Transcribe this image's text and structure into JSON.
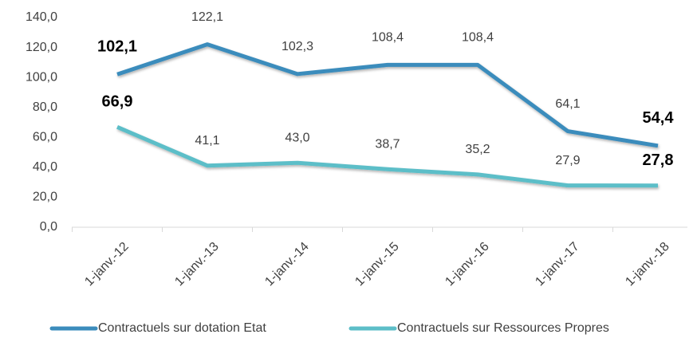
{
  "chart_data": {
    "type": "line",
    "categories": [
      "1-janv.-12",
      "1-janv.-13",
      "1-janv.-14",
      "1-janv.-15",
      "1-janv.-16",
      "1-janv.-17",
      "1-janv.-18"
    ],
    "series": [
      {
        "name": "Contractuels sur dotation Etat",
        "color": "#3b8cbc",
        "values": [
          102.1,
          122.1,
          102.3,
          108.4,
          108.4,
          64.1,
          54.4
        ],
        "value_labels": [
          "102,1",
          "122,1",
          "102,3",
          "108,4",
          "108,4",
          "64,1",
          "54,4"
        ]
      },
      {
        "name": "Contractuels sur Ressources Propres",
        "color": "#5cbec8",
        "values": [
          66.9,
          41.1,
          43.0,
          38.7,
          35.2,
          27.9,
          27.8
        ],
        "value_labels": [
          "66,9",
          "41,1",
          "43,0",
          "38,7",
          "35,2",
          "27,9",
          "27,8"
        ]
      }
    ],
    "ylim": [
      0,
      140
    ],
    "yticks": [
      {
        "value": 0,
        "label": "0,0"
      },
      {
        "value": 20,
        "label": "20,0"
      },
      {
        "value": 40,
        "label": "40,0"
      },
      {
        "value": 60,
        "label": "60,0"
      },
      {
        "value": 80,
        "label": "80,0"
      },
      {
        "value": 100,
        "label": "100,0"
      },
      {
        "value": 120,
        "label": "120,0"
      },
      {
        "value": 140,
        "label": "140,0"
      }
    ],
    "legend": "bottom"
  }
}
